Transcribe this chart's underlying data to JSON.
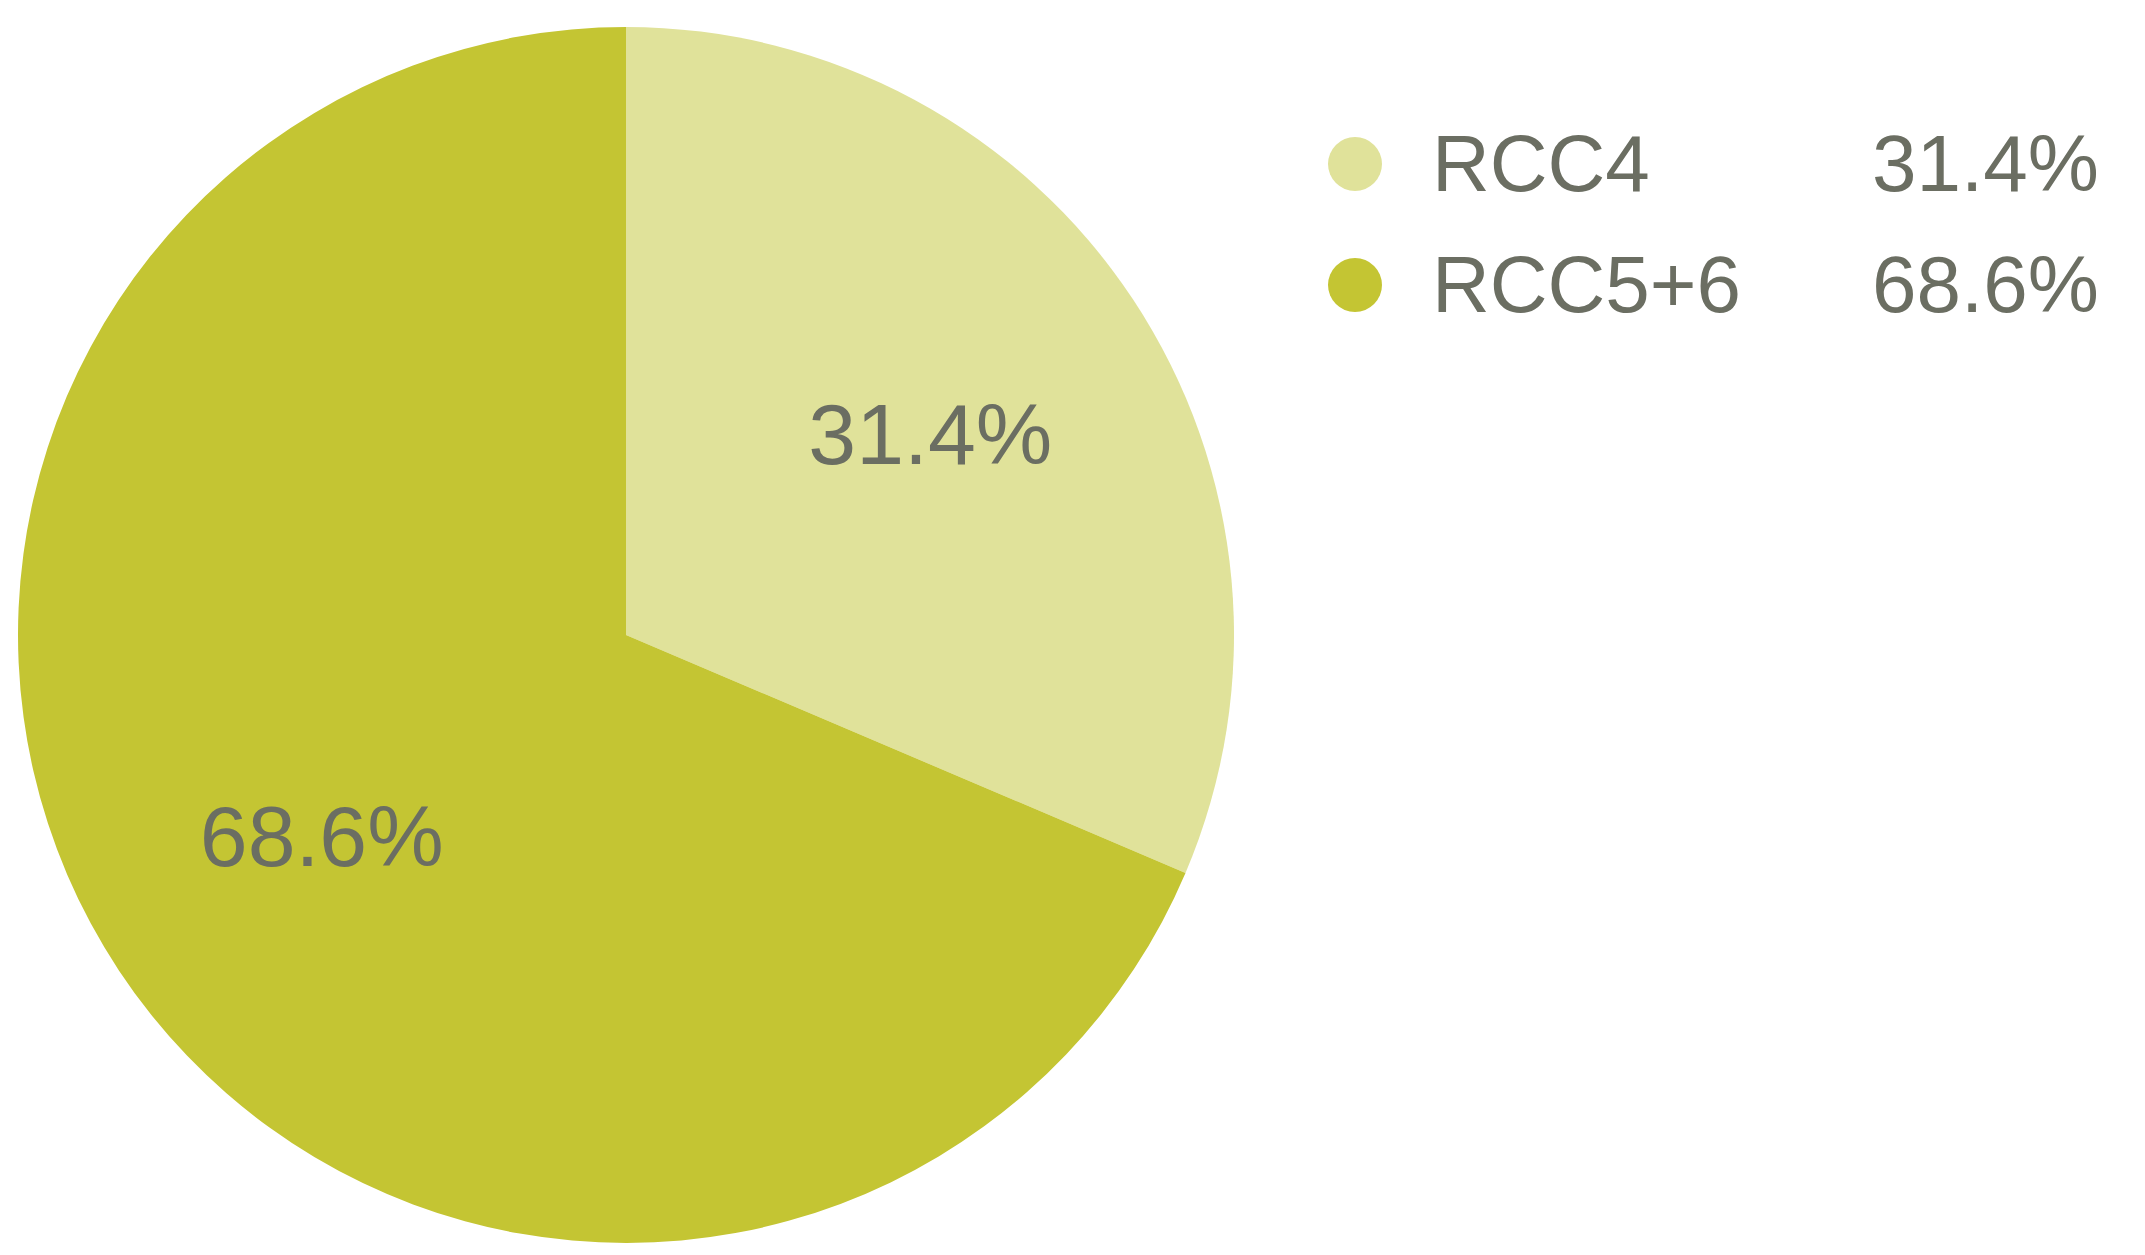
{
  "chart_data": {
    "type": "pie",
    "categories": [
      "RCC4",
      "RCC5+6"
    ],
    "values": [
      31.4,
      68.6
    ],
    "colors": [
      "#e0e29a",
      "#c4c533"
    ],
    "value_labels": [
      "31.4%",
      "68.6%"
    ],
    "legend": "top right"
  }
}
